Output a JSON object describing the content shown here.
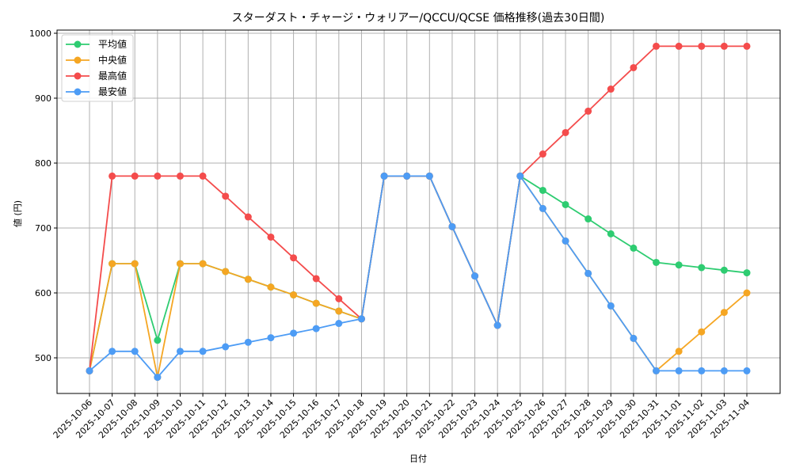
{
  "chart_data": {
    "type": "line",
    "title": "スターダスト・チャージ・ウォリアー/QCCU/QCSE 価格推移(過去30日間)",
    "xlabel": "日付",
    "ylabel": "値 (円)",
    "ylim": [
      445,
      1005
    ],
    "yticks": [
      500,
      600,
      700,
      800,
      900,
      1000
    ],
    "grid": true,
    "legend_position": "upper left",
    "categories": [
      "2025-10-06",
      "2025-10-07",
      "2025-10-08",
      "2025-10-09",
      "2025-10-10",
      "2025-10-11",
      "2025-10-12",
      "2025-10-13",
      "2025-10-14",
      "2025-10-15",
      "2025-10-16",
      "2025-10-17",
      "2025-10-18",
      "2025-10-19",
      "2025-10-20",
      "2025-10-21",
      "2025-10-22",
      "2025-10-23",
      "2025-10-24",
      "2025-10-25",
      "2025-10-26",
      "2025-10-27",
      "2025-10-28",
      "2025-10-29",
      "2025-10-30",
      "2025-10-31",
      "2025-11-01",
      "2025-11-02",
      "2025-11-03",
      "2025-11-04"
    ],
    "series": [
      {
        "name": "平均値",
        "color": "#2ecc71",
        "values": [
          480,
          645,
          645,
          527,
          645,
          645,
          633,
          621,
          609,
          597,
          584,
          572,
          560,
          780,
          780,
          780,
          702,
          626,
          550,
          780,
          758,
          736,
          714,
          691,
          669,
          647,
          643,
          639,
          635,
          631
        ]
      },
      {
        "name": "中央値",
        "color": "#f5a623",
        "values": [
          480,
          645,
          645,
          470,
          645,
          645,
          633,
          621,
          609,
          597,
          584,
          572,
          560,
          780,
          780,
          780,
          702,
          626,
          550,
          780,
          730,
          680,
          630,
          580,
          530,
          480,
          510,
          540,
          570,
          600
        ]
      },
      {
        "name": "最高値",
        "color": "#f44c4c",
        "values": [
          480,
          780,
          780,
          780,
          780,
          780,
          749,
          717,
          686,
          654,
          622,
          591,
          560,
          780,
          780,
          780,
          702,
          626,
          550,
          780,
          814,
          847,
          880,
          914,
          947,
          980,
          980,
          980,
          980,
          980
        ]
      },
      {
        "name": "最安値",
        "color": "#4d9cf5",
        "values": [
          480,
          510,
          510,
          470,
          510,
          510,
          517,
          524,
          531,
          538,
          545,
          553,
          560,
          780,
          780,
          780,
          702,
          626,
          550,
          780,
          730,
          680,
          630,
          580,
          530,
          480,
          480,
          480,
          480,
          480
        ]
      }
    ]
  }
}
